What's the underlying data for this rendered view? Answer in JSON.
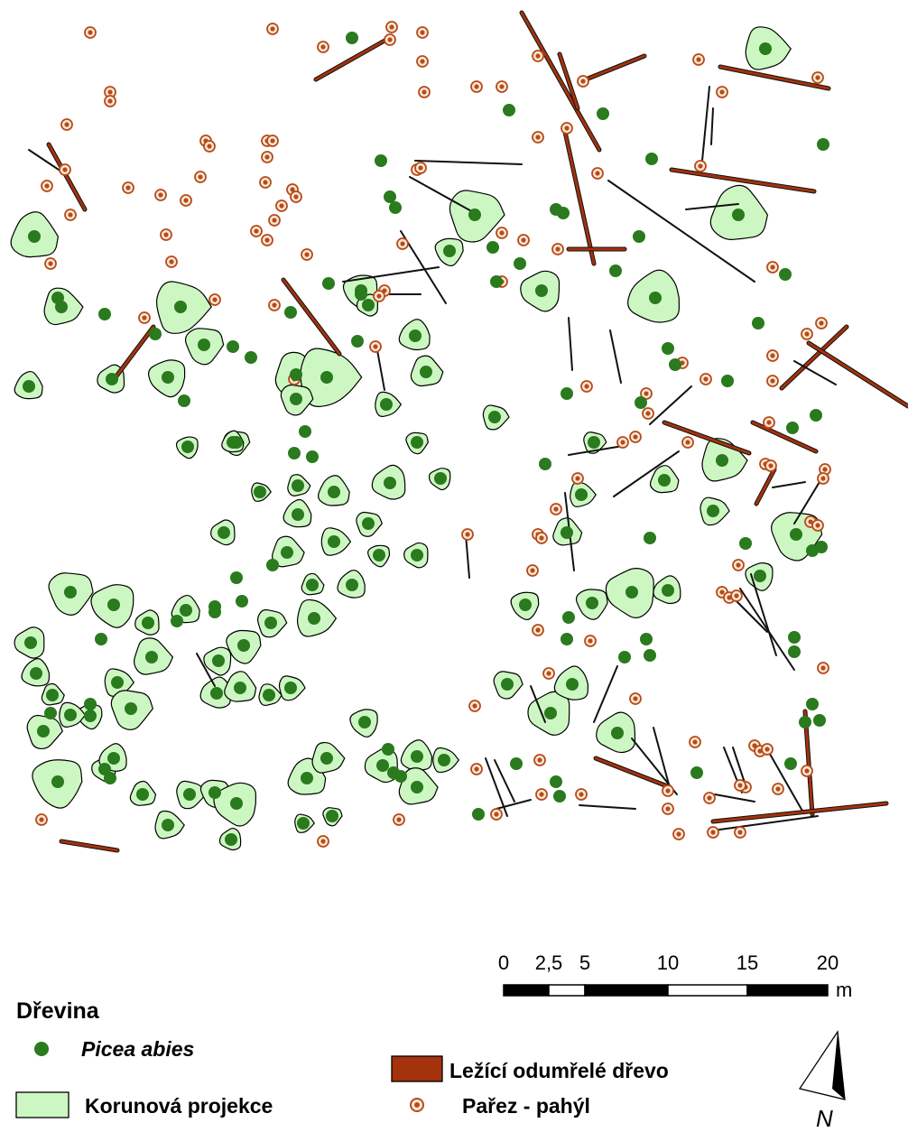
{
  "legend": {
    "title": "Dřevina",
    "species_label": "Picea abies",
    "crown_label": "Korunová projekce",
    "deadwood_label": "Ležící odumřelé dřevo",
    "stump_label": "Pařez - pahýl"
  },
  "scale_bar": {
    "ticks": [
      "0",
      "2,5",
      "5",
      "10",
      "15",
      "20"
    ],
    "unit": "m"
  },
  "north_arrow": {
    "label": "N"
  },
  "colors": {
    "tree": "#2a7a1e",
    "crown_fill": "#cdf7c2",
    "deadwood": "#a3320d",
    "stump_ring": "#b84a1a",
    "stump_fill": "#f7e9d6"
  }
}
